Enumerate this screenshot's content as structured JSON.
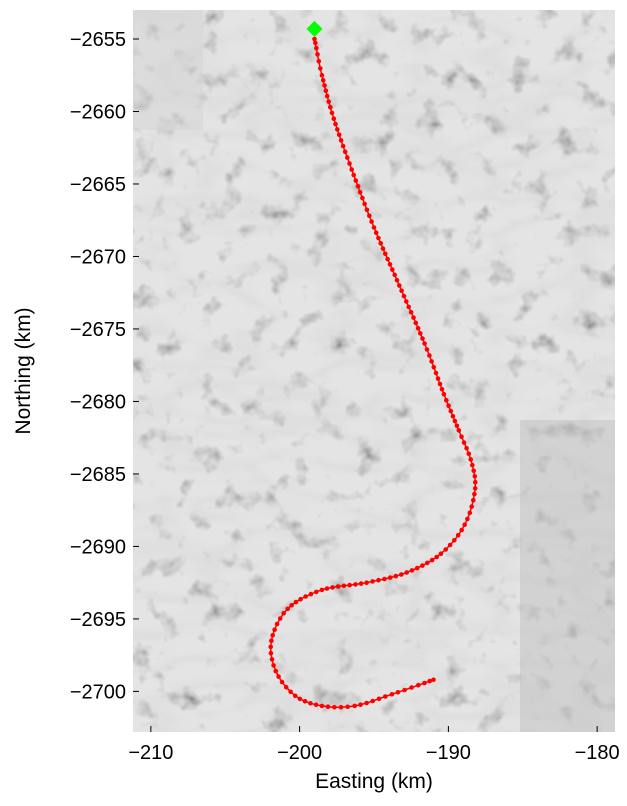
{
  "chart_data": {
    "type": "line",
    "title": "",
    "xlabel": "Easting (km)",
    "ylabel": "Northing (km)",
    "xlim": [
      -211.2,
      -178.8
    ],
    "ylim": [
      -2702.8,
      -2653.0
    ],
    "xticks": [
      -210,
      -200,
      -190,
      -180
    ],
    "xtick_labels": [
      "−210",
      "−200",
      "−190",
      "−180"
    ],
    "yticks": [
      -2655,
      -2660,
      -2665,
      -2670,
      -2675,
      -2680,
      -2685,
      -2690,
      -2695,
      -2700
    ],
    "ytick_labels": [
      "−2655",
      "−2660",
      "−2665",
      "−2670",
      "−2675",
      "−2680",
      "−2685",
      "−2690",
      "−2695",
      "−2700"
    ],
    "grid": false,
    "background": "grayscale satellite image of ice sheet surface",
    "series": [
      {
        "marker": "dot",
        "color": "#ff0000",
        "x": [
          -199.0,
          -198.5,
          -197.7,
          -196.5,
          -195.0,
          -193.3,
          -191.6,
          -190.3,
          -189.3,
          -188.5,
          -188.2,
          -188.9,
          -190.5,
          -192.8,
          -195.5,
          -198.5,
          -200.8,
          -201.9,
          -201.6,
          -200.3,
          -198.5,
          -196.3,
          -193.8,
          -191.0
        ],
        "y": [
          -2655.0,
          -2657.5,
          -2660.5,
          -2664.0,
          -2668.0,
          -2672.0,
          -2676.0,
          -2679.5,
          -2682.0,
          -2684.0,
          -2686.0,
          -2688.5,
          -2690.5,
          -2691.8,
          -2692.5,
          -2693.0,
          -2694.3,
          -2696.5,
          -2698.6,
          -2700.3,
          -2701.0,
          -2701.0,
          -2700.2,
          -2699.2
        ]
      }
    ],
    "start_marker": {
      "x": -199.0,
      "y": -2654.3,
      "shape": "diamond",
      "color": "#00ff00"
    }
  }
}
